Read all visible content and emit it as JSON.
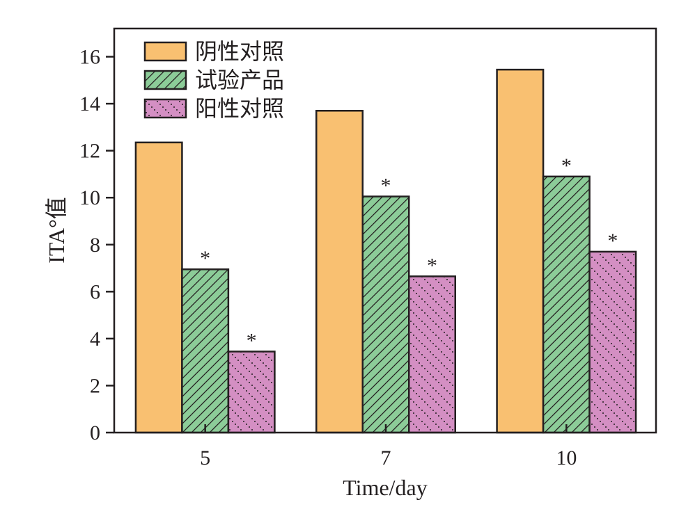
{
  "chart_data": {
    "type": "bar",
    "categories": [
      "5",
      "7",
      "10"
    ],
    "series": [
      {
        "name": "阴性对照",
        "values": [
          12.35,
          13.7,
          15.45
        ],
        "color": "#f9c071",
        "pattern": "solid",
        "significance": [
          "",
          "",
          ""
        ]
      },
      {
        "name": "试验产品",
        "values": [
          6.95,
          10.05,
          10.9
        ],
        "color": "#8ccc98",
        "pattern": "diagonal-lines",
        "significance": [
          "*",
          "*",
          "*"
        ]
      },
      {
        "name": "阳性对照",
        "values": [
          3.45,
          6.65,
          7.7
        ],
        "color": "#d48fc3",
        "pattern": "dotted-diagonal",
        "significance": [
          "*",
          "*",
          "*"
        ]
      }
    ],
    "xlabel": "Time/day",
    "ylabel": "ITA°值",
    "ylim": [
      0,
      17.2
    ],
    "yticks": [
      0,
      2,
      4,
      6,
      8,
      10,
      12,
      14,
      16
    ],
    "legend_position": "top-left",
    "grid": false
  }
}
